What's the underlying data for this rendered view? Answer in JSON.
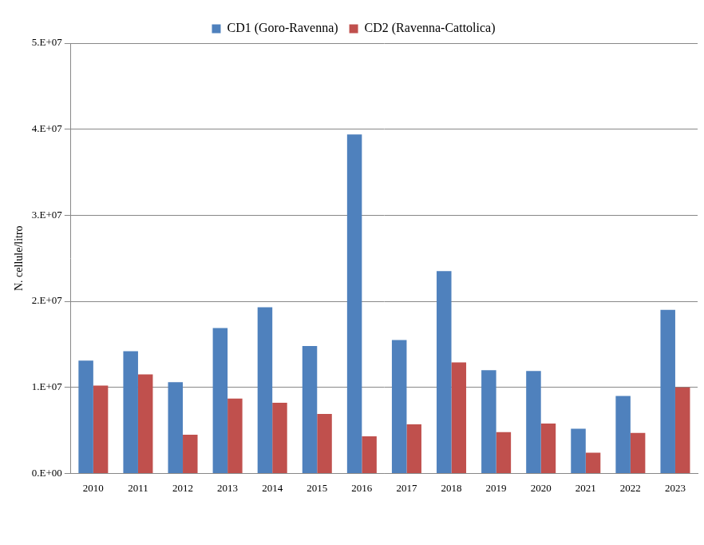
{
  "chart_data": {
    "type": "bar",
    "y_label": "N. cellule/litro",
    "categories": [
      "2010",
      "2011",
      "2012",
      "2013",
      "2014",
      "2015",
      "2016",
      "2017",
      "2018",
      "2019",
      "2020",
      "2021",
      "2022",
      "2023"
    ],
    "series": [
      {
        "name": "CD1 (Goro-Ravenna)",
        "color": "#4f81bd",
        "values": [
          13100000,
          14200000,
          10600000,
          16900000,
          19300000,
          14800000,
          39400000,
          15500000,
          23500000,
          12000000,
          11900000,
          5200000,
          9000000,
          19000000
        ]
      },
      {
        "name": "CD2 (Ravenna-Cattolica)",
        "color": "#c0504d",
        "values": [
          10200000,
          11500000,
          4500000,
          8700000,
          8200000,
          6900000,
          4300000,
          5700000,
          12900000,
          4800000,
          5800000,
          2400000,
          4700000,
          10000000
        ]
      }
    ],
    "ylim": [
      0,
      50000000
    ],
    "yticks": [
      {
        "value": 0,
        "label": "0.E+00"
      },
      {
        "value": 10000000,
        "label": "1.E+07"
      },
      {
        "value": 20000000,
        "label": "2.E+07"
      },
      {
        "value": 30000000,
        "label": "3.E+07"
      },
      {
        "value": 40000000,
        "label": "4.E+07"
      },
      {
        "value": 50000000,
        "label": "5.E+07"
      }
    ],
    "grid": true,
    "legend": "top"
  }
}
